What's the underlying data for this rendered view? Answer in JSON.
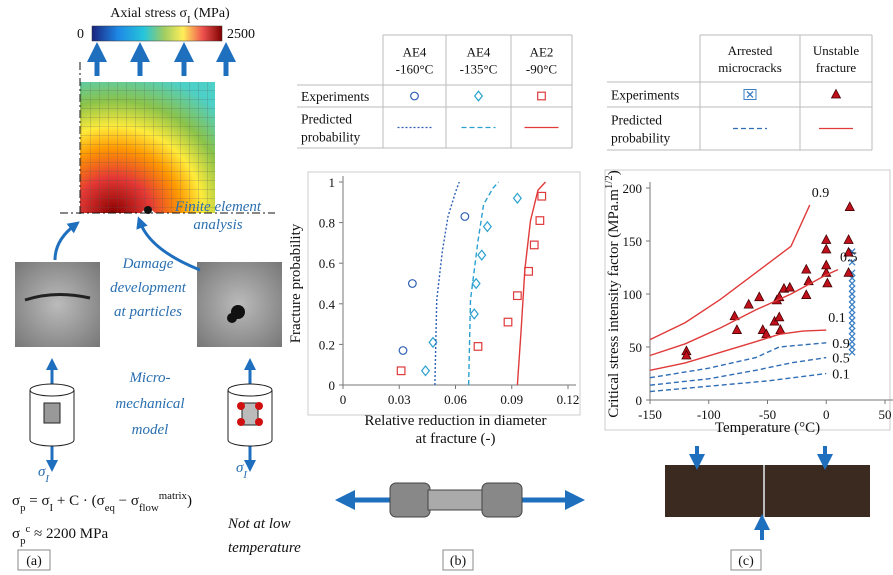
{
  "panel_a": {
    "label": "(a)",
    "colorbar": {
      "title": [
        {
          "t": "Axial stress σ"
        },
        {
          "t": "I",
          "sub": true
        },
        {
          "t": " (MPa)"
        }
      ],
      "min": 0,
      "max": 2500
    },
    "fe_label": [
      "Finite element",
      "analysis"
    ],
    "damage_label": [
      "Damage",
      "development",
      "at particles"
    ],
    "model_label": [
      "Micro-",
      "mechanical",
      "model"
    ],
    "stress_left": [
      {
        "t": "σ"
      },
      {
        "t": "I",
        "sub": true
      }
    ],
    "stress_right": [
      {
        "t": "σ"
      },
      {
        "t": "I",
        "sub": true
      }
    ],
    "equation_1": [
      {
        "t": "σ"
      },
      {
        "t": "p",
        "sub": true
      },
      {
        "t": " =  σ"
      },
      {
        "t": "I",
        "sub": true
      },
      {
        "t": " + C · (σ"
      },
      {
        "t": "eq",
        "sub": true
      },
      {
        "t": " − σ"
      },
      {
        "t": "flow",
        "sub": true
      },
      {
        "t": "matrix",
        "sup": true
      },
      {
        "t": ")"
      }
    ],
    "equation_2": [
      {
        "t": "σ"
      },
      {
        "t": "p",
        "sub": true
      },
      {
        "t": "c",
        "sup": true
      },
      {
        "t": " ≈ 2200 MPa"
      }
    ],
    "note": [
      "Not at low",
      "temperature"
    ]
  },
  "panel_b": {
    "label": "(b)",
    "legend_table": {
      "columns": [
        [
          "AE4",
          "-160°C"
        ],
        [
          "AE4",
          "-135°C"
        ],
        [
          "AE2",
          "-90°C"
        ]
      ],
      "column_colors": [
        "#2f5fb5",
        "#2aa0d0",
        "#e03a3a"
      ],
      "rows": [
        [
          "Experiments"
        ],
        [
          "Predicted",
          "probability"
        ]
      ]
    }
  },
  "panel_c": {
    "label": "(c)",
    "legend_table": {
      "columns": [
        [
          "Arrested",
          "microcracks"
        ],
        [
          "Unstable",
          "fracture"
        ]
      ],
      "column_colors": [
        "#2f6db5",
        "#d02020"
      ],
      "rows": [
        [
          "Experiments"
        ],
        [
          "Predicted",
          "probability"
        ]
      ]
    }
  },
  "chart_data": [
    {
      "type": "scatter",
      "xlabel": [
        "Relative reduction in diameter",
        "at fracture (-)"
      ],
      "ylabel": [
        {
          "t": "Fracture probability"
        }
      ],
      "xlim": [
        0,
        0.12
      ],
      "xticks": [
        0,
        0.03,
        0.06,
        0.09,
        0.12
      ],
      "ylim": [
        0,
        1
      ],
      "yticks": [
        0,
        0.2,
        0.4,
        0.6,
        0.8,
        1
      ],
      "grid": false,
      "series": [
        {
          "marker": "circle",
          "color": "#2f5fb5",
          "x": [
            0.032,
            0.037,
            0.065
          ],
          "values": [
            0.17,
            0.5,
            0.83
          ]
        },
        {
          "marker": "diamond",
          "color": "#2aa0d0",
          "x": [
            0.044,
            0.048,
            0.07,
            0.071,
            0.074,
            0.077,
            0.093
          ],
          "values": [
            0.07,
            0.21,
            0.35,
            0.5,
            0.64,
            0.78,
            0.92
          ]
        },
        {
          "marker": "square",
          "color": "#e03a3a",
          "x": [
            0.031,
            0.072,
            0.088,
            0.093,
            0.099,
            0.102,
            0.105,
            0.106
          ],
          "values": [
            0.07,
            0.19,
            0.31,
            0.44,
            0.56,
            0.69,
            0.81,
            0.93
          ]
        },
        {
          "line": "dotted",
          "color": "#2f5fb5",
          "x": [
            0.049,
            0.05,
            0.053,
            0.056,
            0.06,
            0.062
          ],
          "values": [
            0,
            0.42,
            0.66,
            0.83,
            0.95,
            1
          ]
        },
        {
          "line": "dashed",
          "color": "#2aa0d0",
          "x": [
            0.067,
            0.068,
            0.072,
            0.075,
            0.08,
            0.083
          ],
          "values": [
            0,
            0.42,
            0.71,
            0.89,
            0.97,
            1
          ]
        },
        {
          "line": "solid",
          "color": "#e03a3a",
          "x": [
            0.093,
            0.095,
            0.097,
            0.1,
            0.104,
            0.108
          ],
          "values": [
            0,
            0.27,
            0.57,
            0.81,
            0.96,
            1
          ]
        }
      ]
    },
    {
      "type": "scatter",
      "xlabel": [
        "Temperature  (°C)"
      ],
      "ylabel": [
        {
          "t": "Critical stress intensity  factor  (MPa.m"
        },
        {
          "t": "1/2",
          "sup": true
        },
        {
          "t": ")"
        }
      ],
      "xlim": [
        -150,
        50
      ],
      "xticks": [
        -150,
        -100,
        -50,
        0,
        50
      ],
      "ylim": [
        0,
        200
      ],
      "yticks": [
        0,
        50,
        100,
        150,
        200
      ],
      "grid": false,
      "series": [
        {
          "marker": "cross",
          "color": "#3a7fc4",
          "x": [
            22,
            22,
            22,
            22,
            22,
            22,
            22,
            22,
            22,
            22,
            22,
            22,
            22,
            22,
            22,
            22,
            22,
            22
          ],
          "values": [
            45,
            50,
            55,
            60,
            65,
            70,
            75,
            80,
            85,
            90,
            95,
            100,
            105,
            110,
            115,
            120,
            130,
            140
          ]
        },
        {
          "marker": "triangle",
          "color": "#c0101c",
          "x": [
            -119,
            -119,
            -78,
            -76,
            -66,
            -57,
            -54,
            -51,
            -44,
            -42,
            -40,
            -40,
            -39,
            -36,
            -31,
            -17,
            -17,
            -15,
            0,
            0,
            0,
            0,
            1,
            20,
            19,
            19,
            19
          ],
          "values": [
            46,
            42,
            79,
            66,
            90,
            97,
            66,
            62,
            74,
            94,
            97,
            78,
            66,
            105,
            106,
            99,
            123,
            112,
            151,
            142,
            120,
            127,
            110,
            182,
            151,
            139,
            120
          ]
        },
        {
          "line": "solid",
          "color": "#e03a3a",
          "label": "0.9",
          "x": [
            -150,
            -120,
            -90,
            -60,
            -30,
            -14
          ],
          "values": [
            57,
            73,
            95,
            120,
            145,
            184
          ]
        },
        {
          "line": "solid",
          "color": "#e03a3a",
          "label": "0.5",
          "x": [
            -150,
            -120,
            -90,
            -60,
            -30,
            0,
            10
          ],
          "values": [
            42,
            53,
            68,
            85,
            100,
            118,
            123
          ]
        },
        {
          "line": "solid",
          "color": "#e03a3a",
          "label": "0.1",
          "x": [
            -150,
            -120,
            -90,
            -60,
            -40,
            -20,
            0
          ],
          "values": [
            28,
            35,
            45,
            55,
            62,
            65,
            66
          ]
        },
        {
          "line": "dashed",
          "color": "#2f6db5",
          "label": "0.9",
          "x": [
            -150,
            -100,
            -60,
            -40,
            0
          ],
          "values": [
            21,
            30,
            40,
            50,
            54
          ]
        },
        {
          "line": "dashed",
          "color": "#2f6db5",
          "label": "0.5",
          "x": [
            -150,
            -100,
            -60,
            -30,
            0
          ],
          "values": [
            14,
            20,
            28,
            35,
            40
          ]
        },
        {
          "line": "dashed",
          "color": "#2f6db5",
          "label": "0.1",
          "x": [
            -150,
            -100,
            -50,
            0
          ],
          "values": [
            8,
            13,
            18,
            25
          ]
        }
      ]
    }
  ]
}
